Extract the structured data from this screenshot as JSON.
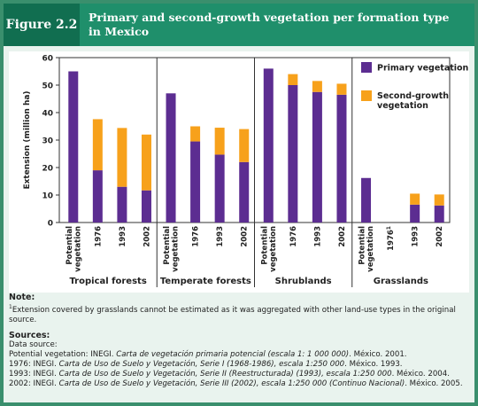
{
  "figure": {
    "label": "Figure 2.2",
    "title": "Primary and second-growth vegetation per formation type in Mexico"
  },
  "chart_data": {
    "type": "bar",
    "stacked": true,
    "ylabel": "Extension (million ha)",
    "ylim": [
      0,
      60
    ],
    "yticks": [
      0,
      10,
      20,
      30,
      40,
      50,
      60
    ],
    "groups": [
      {
        "name": "Tropical forests",
        "categories": [
          "Potential vegetation",
          "1976",
          "1993",
          "2002"
        ],
        "primary": [
          55,
          19,
          13,
          11.7
        ],
        "second": [
          0,
          18.6,
          21.4,
          20.3
        ]
      },
      {
        "name": "Temperate forests",
        "categories": [
          "Potential vegetation",
          "1976",
          "1993",
          "2002"
        ],
        "primary": [
          47,
          29.5,
          24.7,
          22
        ],
        "second": [
          0,
          5.5,
          9.8,
          12
        ]
      },
      {
        "name": "Shrublands",
        "categories": [
          "Potential vegetation",
          "1976",
          "1993",
          "2002"
        ],
        "primary": [
          56,
          50,
          47.5,
          46.5
        ],
        "second": [
          0,
          4,
          4,
          4
        ]
      },
      {
        "name": "Grasslands",
        "categories": [
          "Potential vegetation",
          "1976",
          "1993",
          "2002"
        ],
        "footnote_category": "1976",
        "primary": [
          16.2,
          0,
          6.5,
          6.2
        ],
        "second": [
          0,
          0,
          4,
          4
        ]
      }
    ],
    "legend": {
      "placement": "top-right",
      "primary_label": "Primary vegetation",
      "second_label": "Second-growth vegetation",
      "primary_color": "#5c2d91",
      "second_color": "#f7a11b"
    },
    "grid": false
  },
  "notes": {
    "heading": "Note:",
    "footnote_mark": "1",
    "text": "Extension covered by grasslands cannot be estimated as it was aggregated with other land-use types in the original source."
  },
  "sources": {
    "heading": "Sources:",
    "intro": "Data source:",
    "lines": [
      {
        "prefix": "Potential vegetation: INEGI. ",
        "title": "Carta de vegetación primaria potencial (escala 1: 1 000 000)",
        "suffix": ". México. 2001."
      },
      {
        "prefix": "1976: INEGI. ",
        "title": "Carta de Uso de Suelo y Vegetación, Serie I (1968-1986), escala 1:250 000",
        "suffix": ". México. 1993."
      },
      {
        "prefix": "1993: INEGI. ",
        "title": "Carta de Uso de Suelo y Vegetación, Serie II (Reestructurada) (1993), escala 1:250 000",
        "suffix": ". México. 2004."
      },
      {
        "prefix": "2002: INEGI. ",
        "title": "Carta de Uso de Suelo y Vegetación, Serie III (2002), escala 1:250 000 (Continuo Nacional)",
        "suffix": ". México. 2005."
      }
    ]
  }
}
